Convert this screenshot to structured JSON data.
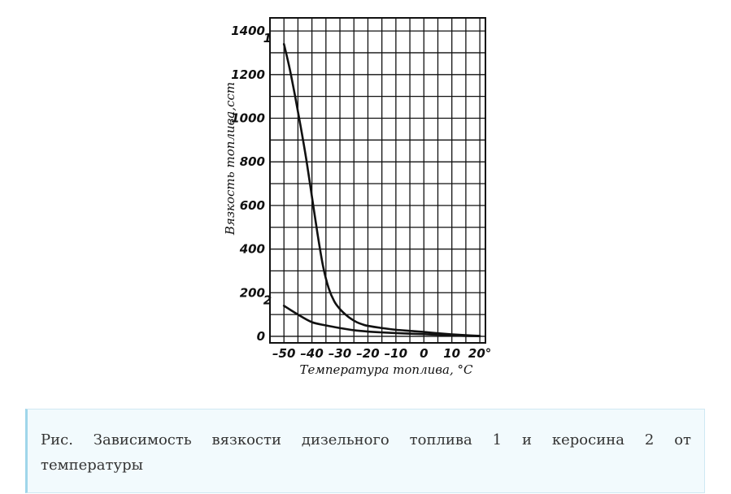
{
  "chart_data": {
    "type": "line",
    "xlabel": "Температура топлива, °С",
    "ylabel": "Вязкость топлива,сст",
    "xlim": [
      -55,
      22
    ],
    "ylim": [
      -30,
      1460
    ],
    "x_ticks": [
      -50,
      -40,
      -30,
      -20,
      -10,
      0,
      10,
      20
    ],
    "x_tick_labels": [
      "–50",
      "–40",
      "–30",
      "–20",
      "–10",
      "0",
      "10",
      "20°"
    ],
    "y_ticks": [
      0,
      200,
      400,
      600,
      800,
      1000,
      1200,
      1400
    ],
    "grid": true,
    "series": [
      {
        "name": "1",
        "x": [
          -50,
          -48,
          -46,
          -44,
          -42,
          -40,
          -38,
          -36,
          -34,
          -32,
          -30,
          -28,
          -26,
          -24,
          -22,
          -20,
          -15,
          -10,
          -5,
          0,
          5,
          10,
          15,
          20
        ],
        "y": [
          1340,
          1230,
          1100,
          960,
          810,
          640,
          470,
          320,
          220,
          160,
          125,
          100,
          80,
          65,
          55,
          48,
          38,
          30,
          25,
          20,
          14,
          9,
          5,
          2
        ]
      },
      {
        "name": "2",
        "x": [
          -50,
          -45,
          -40,
          -35,
          -30,
          -25,
          -20,
          -15,
          -10,
          -5,
          0,
          5,
          10,
          15,
          20
        ],
        "y": [
          140,
          100,
          65,
          50,
          38,
          28,
          22,
          18,
          15,
          12,
          10,
          7,
          4,
          2,
          1
        ]
      }
    ]
  },
  "caption": "Рис. Зависимость вязкости дизельного топлива 1 и керосина 2 от температуры"
}
